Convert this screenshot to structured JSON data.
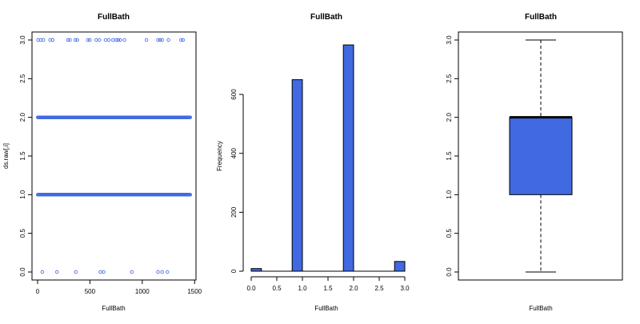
{
  "colors": {
    "fill": "#4169E1",
    "point": "#4169E1",
    "axis": "#000000"
  },
  "chart_data": [
    {
      "type": "scatter",
      "title": "FullBath",
      "xlabel": "FullBath",
      "ylabel": "ds.raw[,i]",
      "xlim": [
        0,
        1460
      ],
      "ylim": [
        0,
        3
      ],
      "xticks": [
        "0",
        "500",
        "1000",
        "1500"
      ],
      "xtick_values": [
        0,
        500,
        1000,
        1500
      ],
      "yticks": [
        "0.0",
        "0.5",
        "1.0",
        "1.5",
        "2.0",
        "2.5",
        "3.0"
      ],
      "ytick_values": [
        0,
        0.5,
        1,
        1.5,
        2,
        2.5,
        3
      ],
      "dense_levels": [
        1,
        2
      ],
      "dense_range": [
        1,
        1460
      ],
      "sparse_points": {
        "y3": [
          5,
          30,
          55,
          120,
          145,
          290,
          310,
          360,
          380,
          480,
          500,
          560,
          590,
          650,
          680,
          720,
          750,
          770,
          790,
          830,
          1040,
          1150,
          1170,
          1190,
          1250,
          1370,
          1390
        ],
        "y0": [
          45,
          185,
          365,
          600,
          630,
          900,
          1150,
          1190,
          1240
        ]
      }
    },
    {
      "type": "bar",
      "title": "FullBath",
      "xlabel": "FullBath",
      "ylabel": "Frequency",
      "xlim": [
        0,
        3
      ],
      "ylim": [
        0,
        780
      ],
      "xticks": [
        "0.0",
        "0.5",
        "1.0",
        "1.5",
        "2.0",
        "2.5",
        "3.0"
      ],
      "xtick_values": [
        0,
        0.5,
        1,
        1.5,
        2,
        2.5,
        3
      ],
      "yticks": [
        "0",
        "200",
        "400",
        "600"
      ],
      "ytick_values": [
        0,
        200,
        400,
        600
      ],
      "bins": [
        {
          "x0": 0.0,
          "x1": 0.2,
          "count": 9
        },
        {
          "x0": 0.8,
          "x1": 1.0,
          "count": 650
        },
        {
          "x0": 1.8,
          "x1": 2.0,
          "count": 768
        },
        {
          "x0": 2.8,
          "x1": 3.0,
          "count": 33
        }
      ]
    },
    {
      "type": "box",
      "title": "FullBath",
      "xlabel": "FullBath",
      "ylabel": "",
      "ylim": [
        0,
        3
      ],
      "yticks": [
        "0.0",
        "0.5",
        "1.0",
        "1.5",
        "2.0",
        "2.5",
        "3.0"
      ],
      "ytick_values": [
        0,
        0.5,
        1,
        1.5,
        2,
        2.5,
        3
      ],
      "stats": {
        "min": 0,
        "q1": 1,
        "median": 2,
        "q3": 2,
        "max": 3
      }
    }
  ]
}
